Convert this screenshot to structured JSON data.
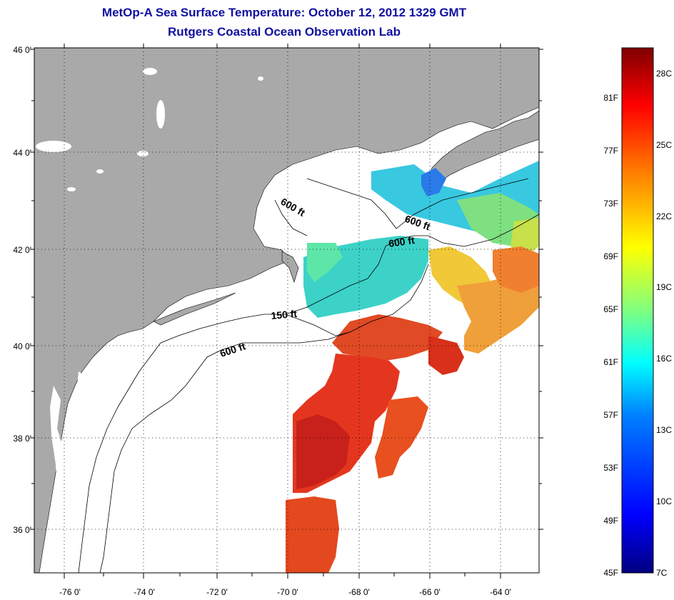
{
  "title": "MetOp-A Sea Surface Temperature:  October 12, 2012 1329 GMT",
  "subtitle": "Rutgers Coastal Ocean Observation Lab",
  "map": {
    "lat_ticks": [
      "46 0'",
      "44 0'",
      "42 0'",
      "40 0'",
      "38 0'",
      "36 0'"
    ],
    "lon_ticks": [
      "-76 0'",
      "-74 0'",
      "-72 0'",
      "-70 0'",
      "-68 0'",
      "-66 0'",
      "-64 0'"
    ],
    "contour_labels": [
      "600 ft",
      "600 ft",
      "600 ft",
      "150 ft",
      "600 ft"
    ],
    "colors": {
      "land": "#a9a9a9",
      "ocean_no_data": "#ffffff",
      "grid": "#000000"
    }
  },
  "colorbar": {
    "f_labels": [
      "81F",
      "77F",
      "73F",
      "69F",
      "65F",
      "61F",
      "57F",
      "53F",
      "49F",
      "45F"
    ],
    "c_labels": [
      "28C",
      "25C",
      "22C",
      "19C",
      "16C",
      "13C",
      "10C",
      "7C"
    ],
    "gradient": [
      "#00007f",
      "#0000ff",
      "#0080ff",
      "#00ffff",
      "#80ff80",
      "#ffff00",
      "#ff8000",
      "#ff0000",
      "#7f0000"
    ]
  }
}
